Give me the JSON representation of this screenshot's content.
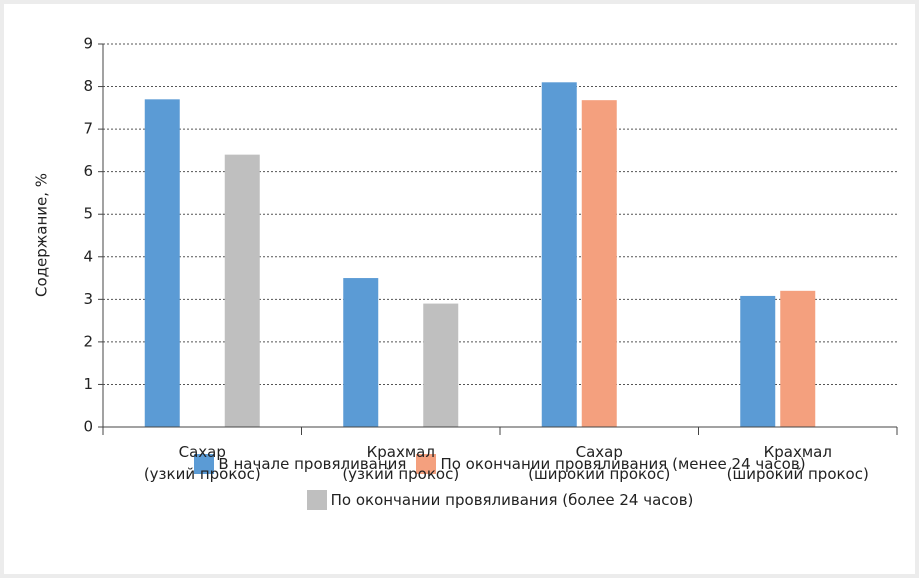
{
  "chart_data": {
    "type": "bar",
    "y_label": "Содержание, %",
    "categories": [
      "Сахар\n(узкий прокос)",
      "Крахмал\n(узкий прокос)",
      "Сахар\n(широкий прокос)",
      "Крахмал\n(широкий прокос)"
    ],
    "series": [
      {
        "name": "В начале провяливания",
        "color": "#5b9bd5",
        "values": [
          7.7,
          3.5,
          8.1,
          3.08
        ]
      },
      {
        "name": "По окончании провяливания (менее 24 часов)",
        "color": "#f4a07e",
        "values": [
          null,
          null,
          7.68,
          3.2
        ]
      },
      {
        "name": "По окончании провяливания (более 24 часов)",
        "color": "#bfbfbf",
        "values": [
          6.4,
          2.9,
          null,
          null
        ]
      }
    ],
    "ylim": [
      0,
      9
    ],
    "yticks": [
      0,
      1,
      2,
      3,
      4,
      5,
      6,
      7,
      8,
      9
    ],
    "grid": true
  }
}
